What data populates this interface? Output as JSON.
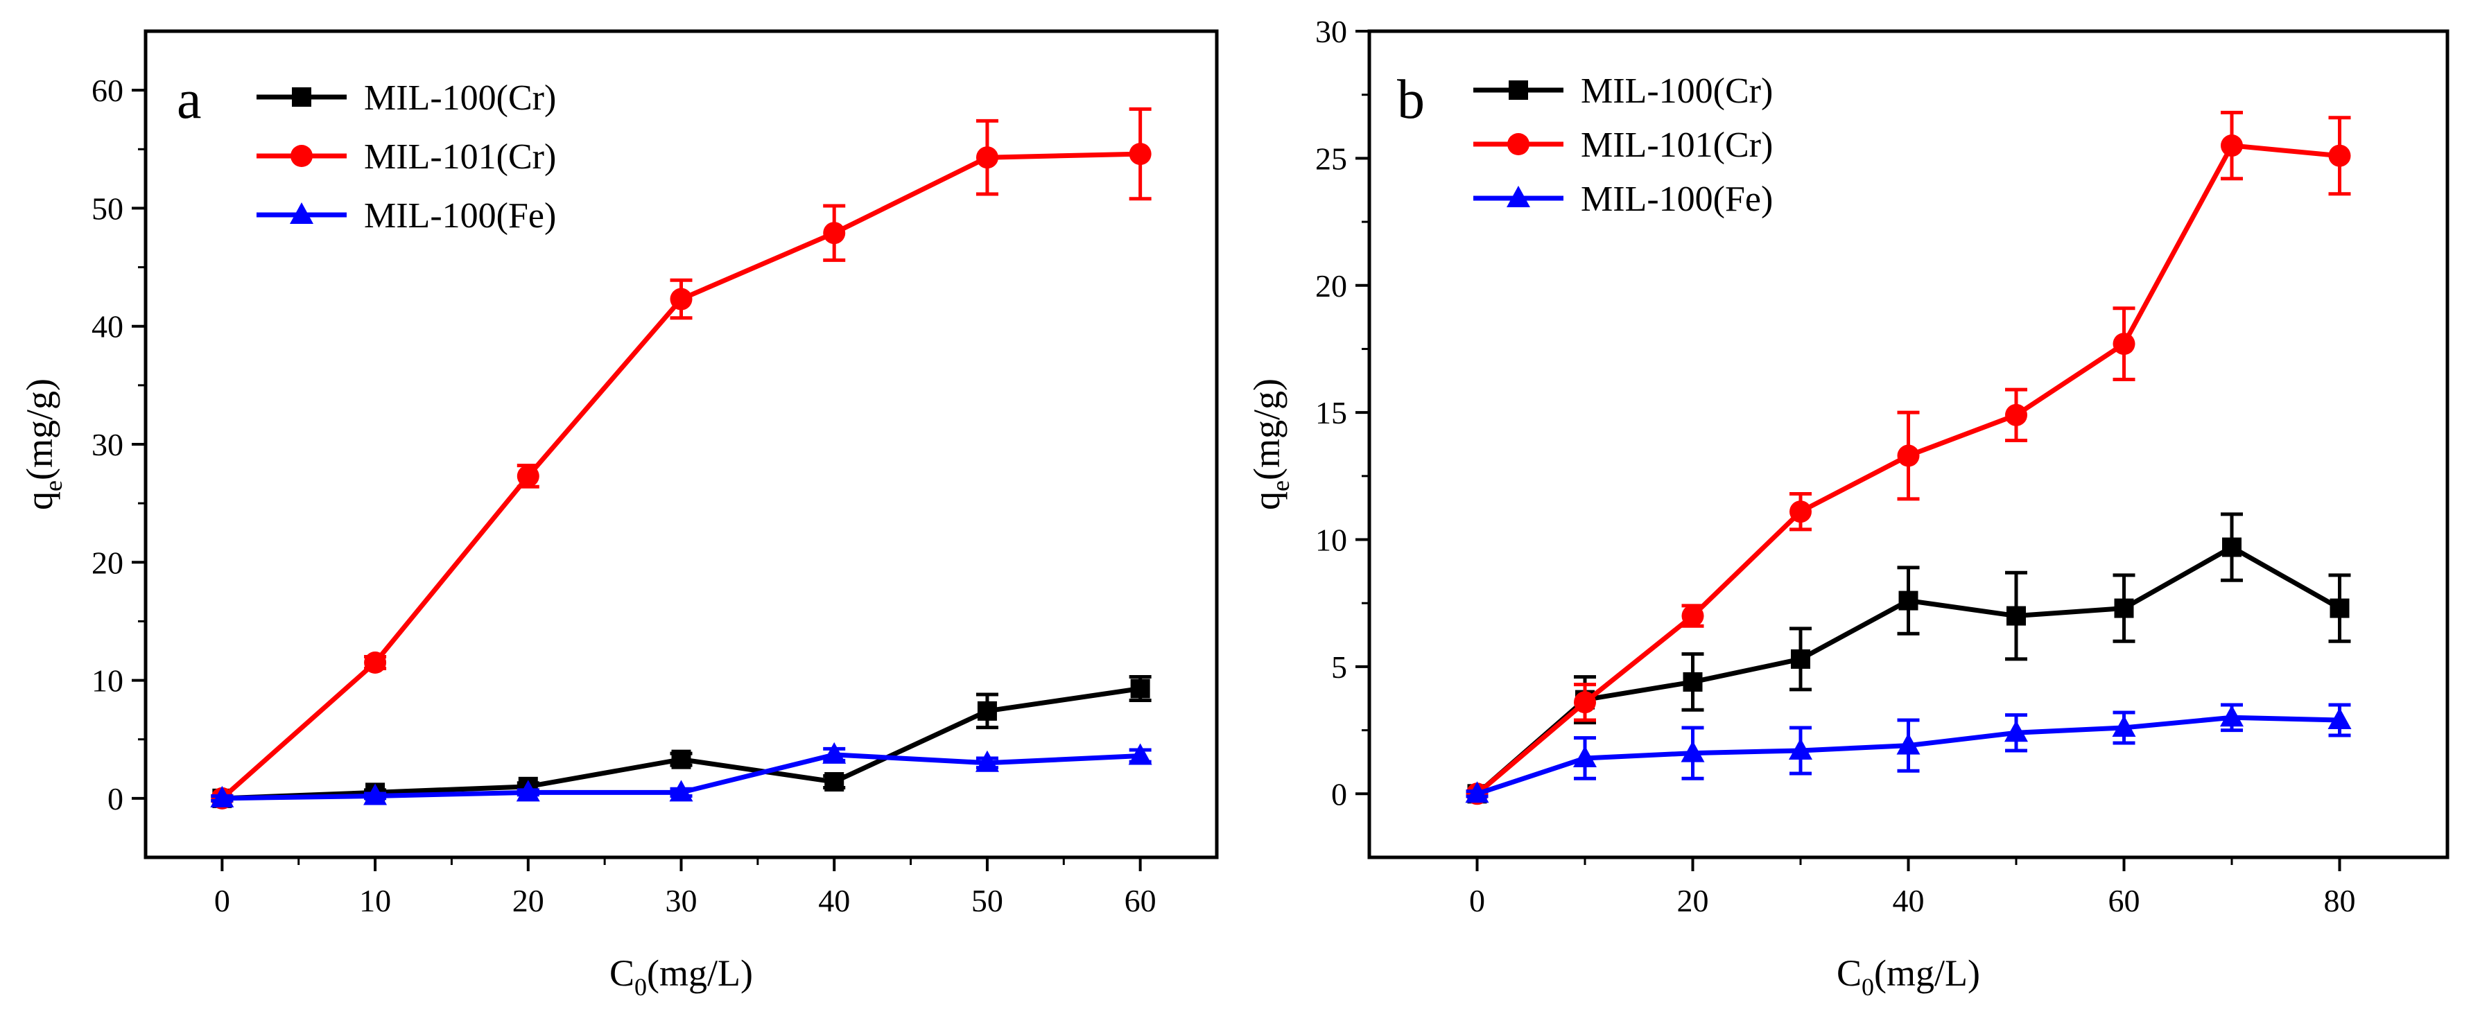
{
  "chart_data": [
    {
      "type": "line",
      "panel_label": "a",
      "xlabel": "C",
      "xlabel_sub": "0",
      "xlabel_unit": "(mg/L)",
      "ylabel": "q",
      "ylabel_sub": "e",
      "ylabel_unit": "(mg/g)",
      "xlim": [
        -5,
        65
      ],
      "ylim": [
        -5,
        65
      ],
      "xticks": [
        0,
        10,
        20,
        30,
        40,
        50,
        60
      ],
      "yticks": [
        0,
        10,
        20,
        30,
        40,
        50,
        60
      ],
      "legend_position": "top-left",
      "series": [
        {
          "name": "MIL-100(Cr)",
          "color": "#000000",
          "marker": "square",
          "x": [
            0,
            10,
            20,
            30,
            40,
            50,
            60
          ],
          "y": [
            0,
            0.5,
            1.0,
            3.3,
            1.4,
            7.4,
            9.3
          ],
          "err": [
            0.2,
            0.2,
            0.3,
            0.5,
            0.5,
            1.4,
            1.0
          ]
        },
        {
          "name": "MIL-101(Cr)",
          "color": "#ff0000",
          "marker": "circle",
          "x": [
            0,
            10,
            20,
            30,
            40,
            50,
            60
          ],
          "y": [
            0,
            11.5,
            27.3,
            42.3,
            47.9,
            54.3,
            54.6
          ],
          "err": [
            0.2,
            0.5,
            0.9,
            1.6,
            2.3,
            3.1,
            3.8
          ]
        },
        {
          "name": "MIL-100(Fe)",
          "color": "#0000ff",
          "marker": "triangle",
          "x": [
            0,
            10,
            20,
            30,
            40,
            50,
            60
          ],
          "y": [
            0,
            0.2,
            0.5,
            0.5,
            3.7,
            3.0,
            3.6
          ],
          "err": [
            0.2,
            0.2,
            0.2,
            0.3,
            0.5,
            0.4,
            0.5
          ]
        }
      ]
    },
    {
      "type": "line",
      "panel_label": "b",
      "xlabel": "C",
      "xlabel_sub": "0",
      "xlabel_unit": "(mg/L)",
      "ylabel": "q",
      "ylabel_sub": "e",
      "ylabel_unit": "(mg/g)",
      "xlim": [
        -10,
        90
      ],
      "ylim": [
        -2.5,
        30
      ],
      "xticks": [
        0,
        20,
        40,
        60,
        80
      ],
      "yticks": [
        0,
        5,
        10,
        15,
        20,
        25,
        30
      ],
      "legend_position": "top-left",
      "series": [
        {
          "name": "MIL-100(Cr)",
          "color": "#000000",
          "marker": "square",
          "x": [
            0,
            10,
            20,
            30,
            40,
            50,
            60,
            70,
            80
          ],
          "y": [
            0,
            3.7,
            4.4,
            5.3,
            7.6,
            7.0,
            7.3,
            9.7,
            7.3
          ],
          "err": [
            0.1,
            0.9,
            1.1,
            1.2,
            1.3,
            1.7,
            1.3,
            1.3,
            1.3
          ]
        },
        {
          "name": "MIL-101(Cr)",
          "color": "#ff0000",
          "marker": "circle",
          "x": [
            0,
            10,
            20,
            30,
            40,
            50,
            60,
            70,
            80
          ],
          "y": [
            0,
            3.6,
            7.0,
            11.1,
            13.3,
            14.9,
            17.7,
            25.5,
            25.1
          ],
          "err": [
            0.1,
            0.7,
            0.4,
            0.7,
            1.7,
            1.0,
            1.4,
            1.3,
            1.5
          ]
        },
        {
          "name": "MIL-100(Fe)",
          "color": "#0000ff",
          "marker": "triangle",
          "x": [
            0,
            10,
            20,
            30,
            40,
            50,
            60,
            70,
            80
          ],
          "y": [
            0,
            1.4,
            1.6,
            1.7,
            1.9,
            2.4,
            2.6,
            3.0,
            2.9
          ],
          "err": [
            0.1,
            0.8,
            1.0,
            0.9,
            1.0,
            0.7,
            0.6,
            0.5,
            0.6
          ]
        }
      ]
    }
  ]
}
